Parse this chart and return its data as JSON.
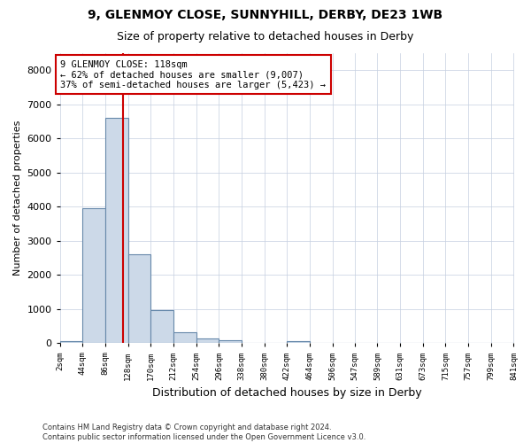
{
  "title1": "9, GLENMOY CLOSE, SUNNYHILL, DERBY, DE23 1WB",
  "title2": "Size of property relative to detached houses in Derby",
  "xlabel": "Distribution of detached houses by size in Derby",
  "ylabel": "Number of detached properties",
  "footer": "Contains HM Land Registry data © Crown copyright and database right 2024.\nContains public sector information licensed under the Open Government Licence v3.0.",
  "bar_color": "#ccd9e8",
  "bar_edge_color": "#6688aa",
  "grid_color": "#c5cfe0",
  "annotation_text": "9 GLENMOY CLOSE: 118sqm\n← 62% of detached houses are smaller (9,007)\n37% of semi-detached houses are larger (5,423) →",
  "vline_x": 118,
  "vline_color": "#cc0000",
  "annotation_box_color": "#cc0000",
  "ylim": [
    0,
    8500
  ],
  "yticks": [
    0,
    1000,
    2000,
    3000,
    4000,
    5000,
    6000,
    7000,
    8000
  ],
  "bin_edges": [
    2,
    44,
    86,
    128,
    170,
    212,
    254,
    296,
    338,
    380,
    422,
    464,
    506,
    547,
    589,
    631,
    673,
    715,
    757,
    799,
    841
  ],
  "bin_labels": [
    "2sqm",
    "44sqm",
    "86sqm",
    "128sqm",
    "170sqm",
    "212sqm",
    "254sqm",
    "296sqm",
    "338sqm",
    "380sqm",
    "422sqm",
    "464sqm",
    "506sqm",
    "547sqm",
    "589sqm",
    "631sqm",
    "673sqm",
    "715sqm",
    "757sqm",
    "799sqm",
    "841sqm"
  ],
  "bar_heights": [
    60,
    3950,
    6600,
    2600,
    970,
    330,
    130,
    100,
    0,
    0,
    70,
    0,
    0,
    0,
    0,
    0,
    0,
    0,
    0,
    0
  ],
  "figsize": [
    6.0,
    5.0
  ],
  "dpi": 100
}
